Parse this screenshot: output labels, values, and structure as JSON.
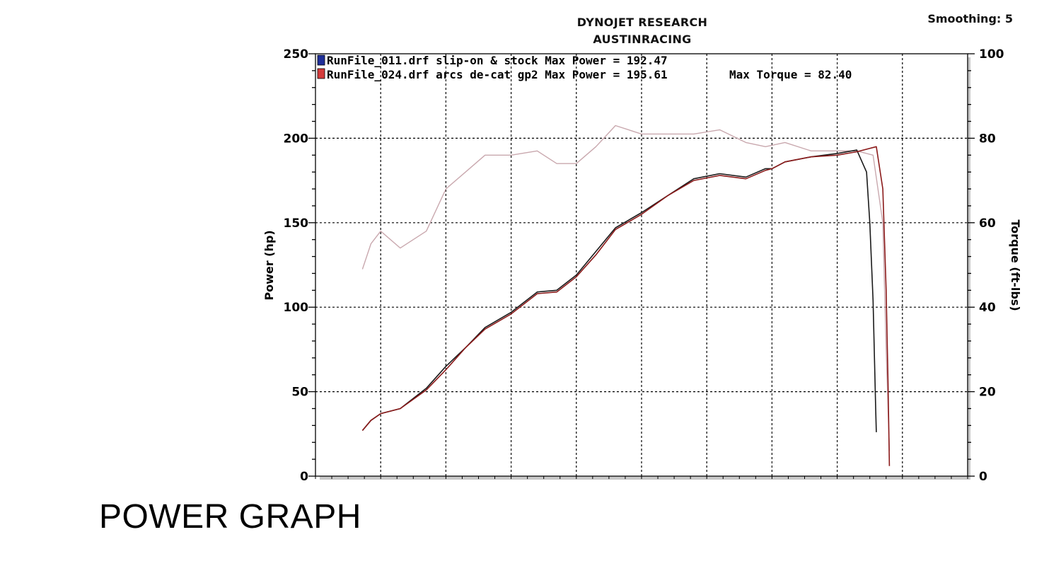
{
  "header": {
    "title_line1": "DYNOJET RESEARCH",
    "title_line2": "AUSTINRACING",
    "smoothing": "Smoothing: 5"
  },
  "caption": "POWER GRAPH",
  "colors": {
    "run1": "#1a1a1a",
    "run1_swatch": "#1f2f9a",
    "run2": "#8b1a1a",
    "run2_swatch": "#d43b3b",
    "torque": "#c9a8ae",
    "grid": "#000000"
  },
  "chart_data": {
    "type": "line",
    "title": "DYNOJET RESEARCH",
    "subtitle": "AUSTINRACING",
    "xlabel": "",
    "ylabel": "Power (hp)",
    "ylabel_right": "Torque (ft-lbs)",
    "ylim": [
      0,
      250
    ],
    "ylim_right": [
      0,
      100
    ],
    "xlim": [
      0,
      10
    ],
    "y_ticks": [
      "0",
      "50",
      "100",
      "150",
      "200",
      "250"
    ],
    "y_right_ticks": [
      "0",
      "20",
      "40",
      "60",
      "80",
      "100"
    ],
    "grid": true,
    "legend": [
      {
        "text": "RunFile_011.drf slip-on & stock Max Power = 192.47",
        "swatch": "blue"
      },
      {
        "text": "RunFile_024.drf arcs de-cat gp2 Max Power = 195.61",
        "extra": "Max Torque = 82.40",
        "swatch": "red"
      }
    ],
    "series": [
      {
        "name": "RunFile_011.drf slip-on & stock",
        "axis": "left",
        "color": "#1a1a1a",
        "x": [
          0.72,
          0.85,
          1.0,
          1.3,
          1.7,
          2.0,
          2.3,
          2.6,
          3.0,
          3.4,
          3.7,
          4.0,
          4.3,
          4.6,
          5.0,
          5.4,
          5.8,
          6.2,
          6.6,
          6.9,
          7.0,
          7.2,
          7.6,
          8.0,
          8.3,
          8.45,
          8.5,
          8.55,
          8.59,
          8.6
        ],
        "y": [
          27,
          33,
          37,
          40,
          52,
          65,
          76,
          88,
          97,
          109,
          110,
          119,
          133,
          147,
          156,
          166,
          176,
          179,
          177,
          182,
          182,
          186,
          189,
          191,
          193,
          180,
          150,
          104,
          40,
          26
        ]
      },
      {
        "name": "RunFile_024.drf arcs de-cat gp2",
        "axis": "left",
        "color": "#8b1a1a",
        "x": [
          0.72,
          0.85,
          1.0,
          1.3,
          1.7,
          2.0,
          2.3,
          2.6,
          3.0,
          3.4,
          3.7,
          4.0,
          4.3,
          4.6,
          5.0,
          5.4,
          5.8,
          6.2,
          6.6,
          6.9,
          7.0,
          7.2,
          7.6,
          8.0,
          8.3,
          8.6,
          8.7,
          8.75,
          8.78,
          8.8
        ],
        "y": [
          27,
          33,
          37,
          40,
          51,
          63,
          76,
          87,
          96,
          108,
          109,
          118,
          131,
          146,
          155,
          166,
          175,
          178,
          176,
          181,
          182,
          186,
          189,
          190,
          192,
          195,
          170,
          110,
          55,
          6
        ]
      },
      {
        "name": "Torque",
        "axis": "right",
        "color": "#c9a8ae",
        "x": [
          0.72,
          0.85,
          1.0,
          1.3,
          1.7,
          2.0,
          2.3,
          2.6,
          3.0,
          3.4,
          3.7,
          4.0,
          4.3,
          4.6,
          5.0,
          5.4,
          5.8,
          6.2,
          6.6,
          6.9,
          7.2,
          7.6,
          8.0,
          8.3,
          8.55,
          8.7,
          8.75,
          8.8
        ],
        "y": [
          49,
          55,
          58,
          54,
          58,
          68,
          72,
          76,
          76,
          77,
          74,
          74,
          78,
          83,
          81,
          81,
          81,
          82,
          79,
          78,
          79,
          77,
          77,
          77,
          76,
          60,
          30,
          6
        ]
      }
    ]
  }
}
